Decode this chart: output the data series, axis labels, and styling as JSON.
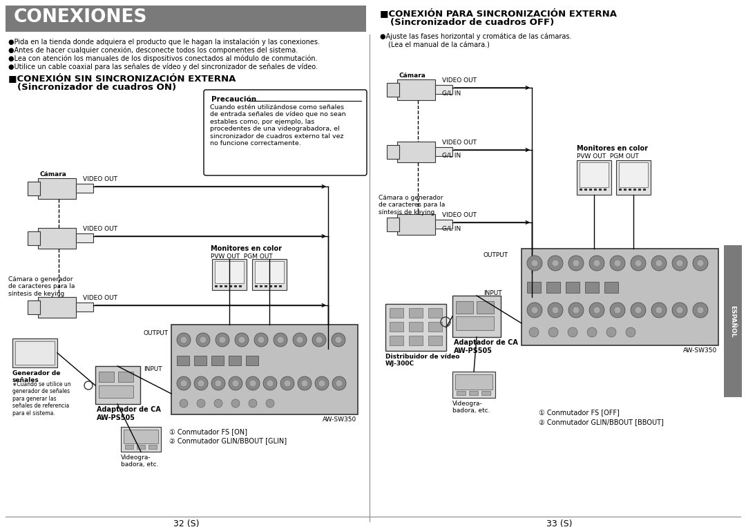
{
  "bg_color": "#ffffff",
  "header_bg": "#7a7a7a",
  "header_text": "CONEXIONES",
  "header_text_color": "#ffffff",
  "bullet_lines_left": [
    "●Pida en la tienda donde adquiera el producto que le hagan la instalación y las conexiones.",
    "●Antes de hacer cualquier conexión, desconecte todos los componentes del sistema.",
    "●Lea con atención los manuales de los dispositivos conectados al módulo de conmutación.",
    "●Utilice un cable coaxial para las señales de vídeo y del sincronizador de señales de vídeo."
  ],
  "section1_title": "■CONEXIÓN SIN SINCRONIZACIÓN EXTERNA",
  "section1_sub": "(Sincronizador de cuadros ON)",
  "section2_title": "■CONEXIÓN PARA SINCRONIZACIÓN EXTERNA",
  "section2_sub": "(Sincronizador de cuadros OFF)",
  "precaucion_title": "Precaución",
  "precaucion_text": "Cuando estén utilizándose como señales\nde entrada señales de vídeo que no sean\nestables como, por ejemplo, las\nprocedentes de una videograbadora, el\nsincronizador de cuadros externo tal vez\nno funcione correctamente.",
  "footer_left": "32 (S)",
  "footer_right": "33 (S)",
  "right_tab": "ESPAÑOL",
  "label_camara": "Cámara",
  "label_video_out": "VIDEO OUT",
  "label_gl_in": "G/L IN",
  "label_monitores": "Monitores en color",
  "label_pvw": "PVW OUT",
  "label_pgm": "PGM OUT",
  "label_camara_gen": "Cámara o generador\nde caracteres para la\nsíntesis de keying",
  "label_generador": "Generador de\nseñales",
  "label_gen_note": "∗Cuando se utilice un\ngenerador de señales\npara generar las\nseñales de referencia\npara el sistema.",
  "label_adaptador": "Adaptador de CA\nAW-PS505",
  "label_videogra": "Videogra-\nbadora, etc.",
  "label_aw_sw350": "AW-SW350",
  "label_conm1_on": "① Conmutador FS [ON]",
  "label_conm2_on": "② Conmutador GLIN/BBOUT [GLIN]",
  "label_conm1_off": "① Conmutador FS [OFF]",
  "label_conm2_off": "② Conmutador GLIN/BBOUT [BBOUT]",
  "label_output": "OUTPUT",
  "label_input": "INPUT",
  "label_distribuidor": "Distribuidor de vídeo\nWJ-300C",
  "label_adaptador_ca2": "Adaptador de CA\nAW-PS505",
  "label_videogra2": "Videogra-\nbadora, etc.",
  "bullet_right_1": "●Ajuste las fases horizontal y cromática de las cámaras.",
  "bullet_right_2": "(Lea el manual de la cámara.)"
}
